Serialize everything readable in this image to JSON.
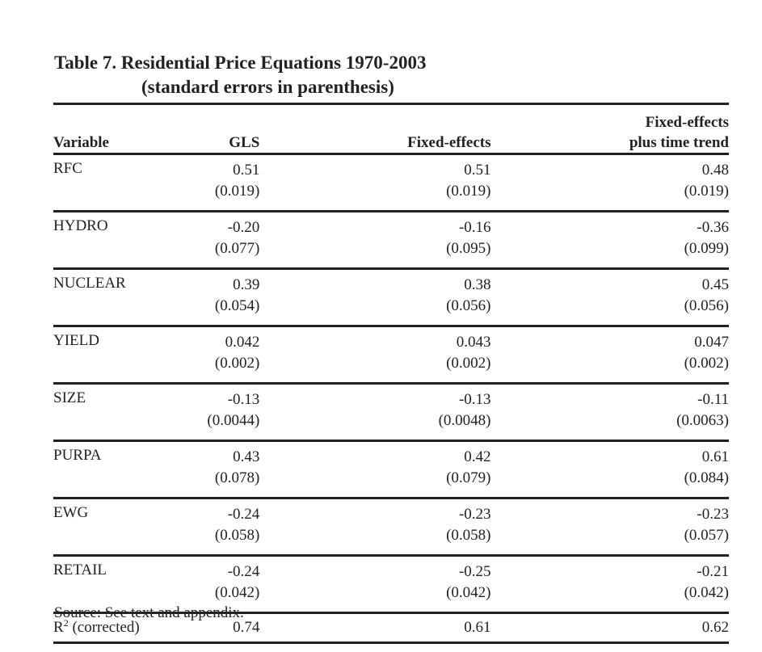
{
  "title": {
    "line1": "Table 7.  Residential Price Equations 1970-2003",
    "line2": "(standard errors in parenthesis)"
  },
  "headers": {
    "variable": "Variable",
    "gls": "GLS",
    "fixed_effects": "Fixed-effects",
    "fixed_effects_trend_line1": "Fixed-effects",
    "fixed_effects_trend_line2": "plus time trend"
  },
  "rows": [
    {
      "variable": "RFC",
      "gls": "0.51",
      "gls_se": "(0.019)",
      "fe": "0.51",
      "fe_se": "(0.019)",
      "fet": "0.48",
      "fet_se": "(0.019)"
    },
    {
      "variable": "HYDRO",
      "gls": "-0.20",
      "gls_se": "(0.077)",
      "fe": "-0.16",
      "fe_se": "(0.095)",
      "fet": "-0.36",
      "fet_se": "(0.099)"
    },
    {
      "variable": "NUCLEAR",
      "gls": "0.39",
      "gls_se": "(0.054)",
      "fe": "0.38",
      "fe_se": "(0.056)",
      "fet": "0.45",
      "fet_se": "(0.056)"
    },
    {
      "variable": "YIELD",
      "gls": "0.042",
      "gls_se": "(0.002)",
      "fe": "0.043",
      "fe_se": "(0.002)",
      "fet": "0.047",
      "fet_se": "(0.002)"
    },
    {
      "variable": "SIZE",
      "gls": "-0.13",
      "gls_se": "(0.0044)",
      "fe": "-0.13",
      "fe_se": "(0.0048)",
      "fet": "-0.11",
      "fet_se": "(0.0063)"
    },
    {
      "variable": "PURPA",
      "gls": "0.43",
      "gls_se": "(0.078)",
      "fe": "0.42",
      "fe_se": "(0.079)",
      "fet": "0.61",
      "fet_se": "(0.084)"
    },
    {
      "variable": "EWG",
      "gls": "-0.24",
      "gls_se": "(0.058)",
      "fe": "-0.23",
      "fe_se": "(0.058)",
      "fet": "-0.23",
      "fet_se": "(0.057)"
    },
    {
      "variable": "RETAIL",
      "gls": "-0.24",
      "gls_se": "(0.042)",
      "fe": "-0.25",
      "fe_se": "(0.042)",
      "fet": "-0.21",
      "fet_se": "(0.042)"
    }
  ],
  "r2": {
    "label_main": "R",
    "label_sup": "2",
    "label_rest": " (corrected)",
    "gls": "0.74",
    "fe": "0.61",
    "fet": "0.62"
  },
  "source": "Source:  See text and appendix."
}
